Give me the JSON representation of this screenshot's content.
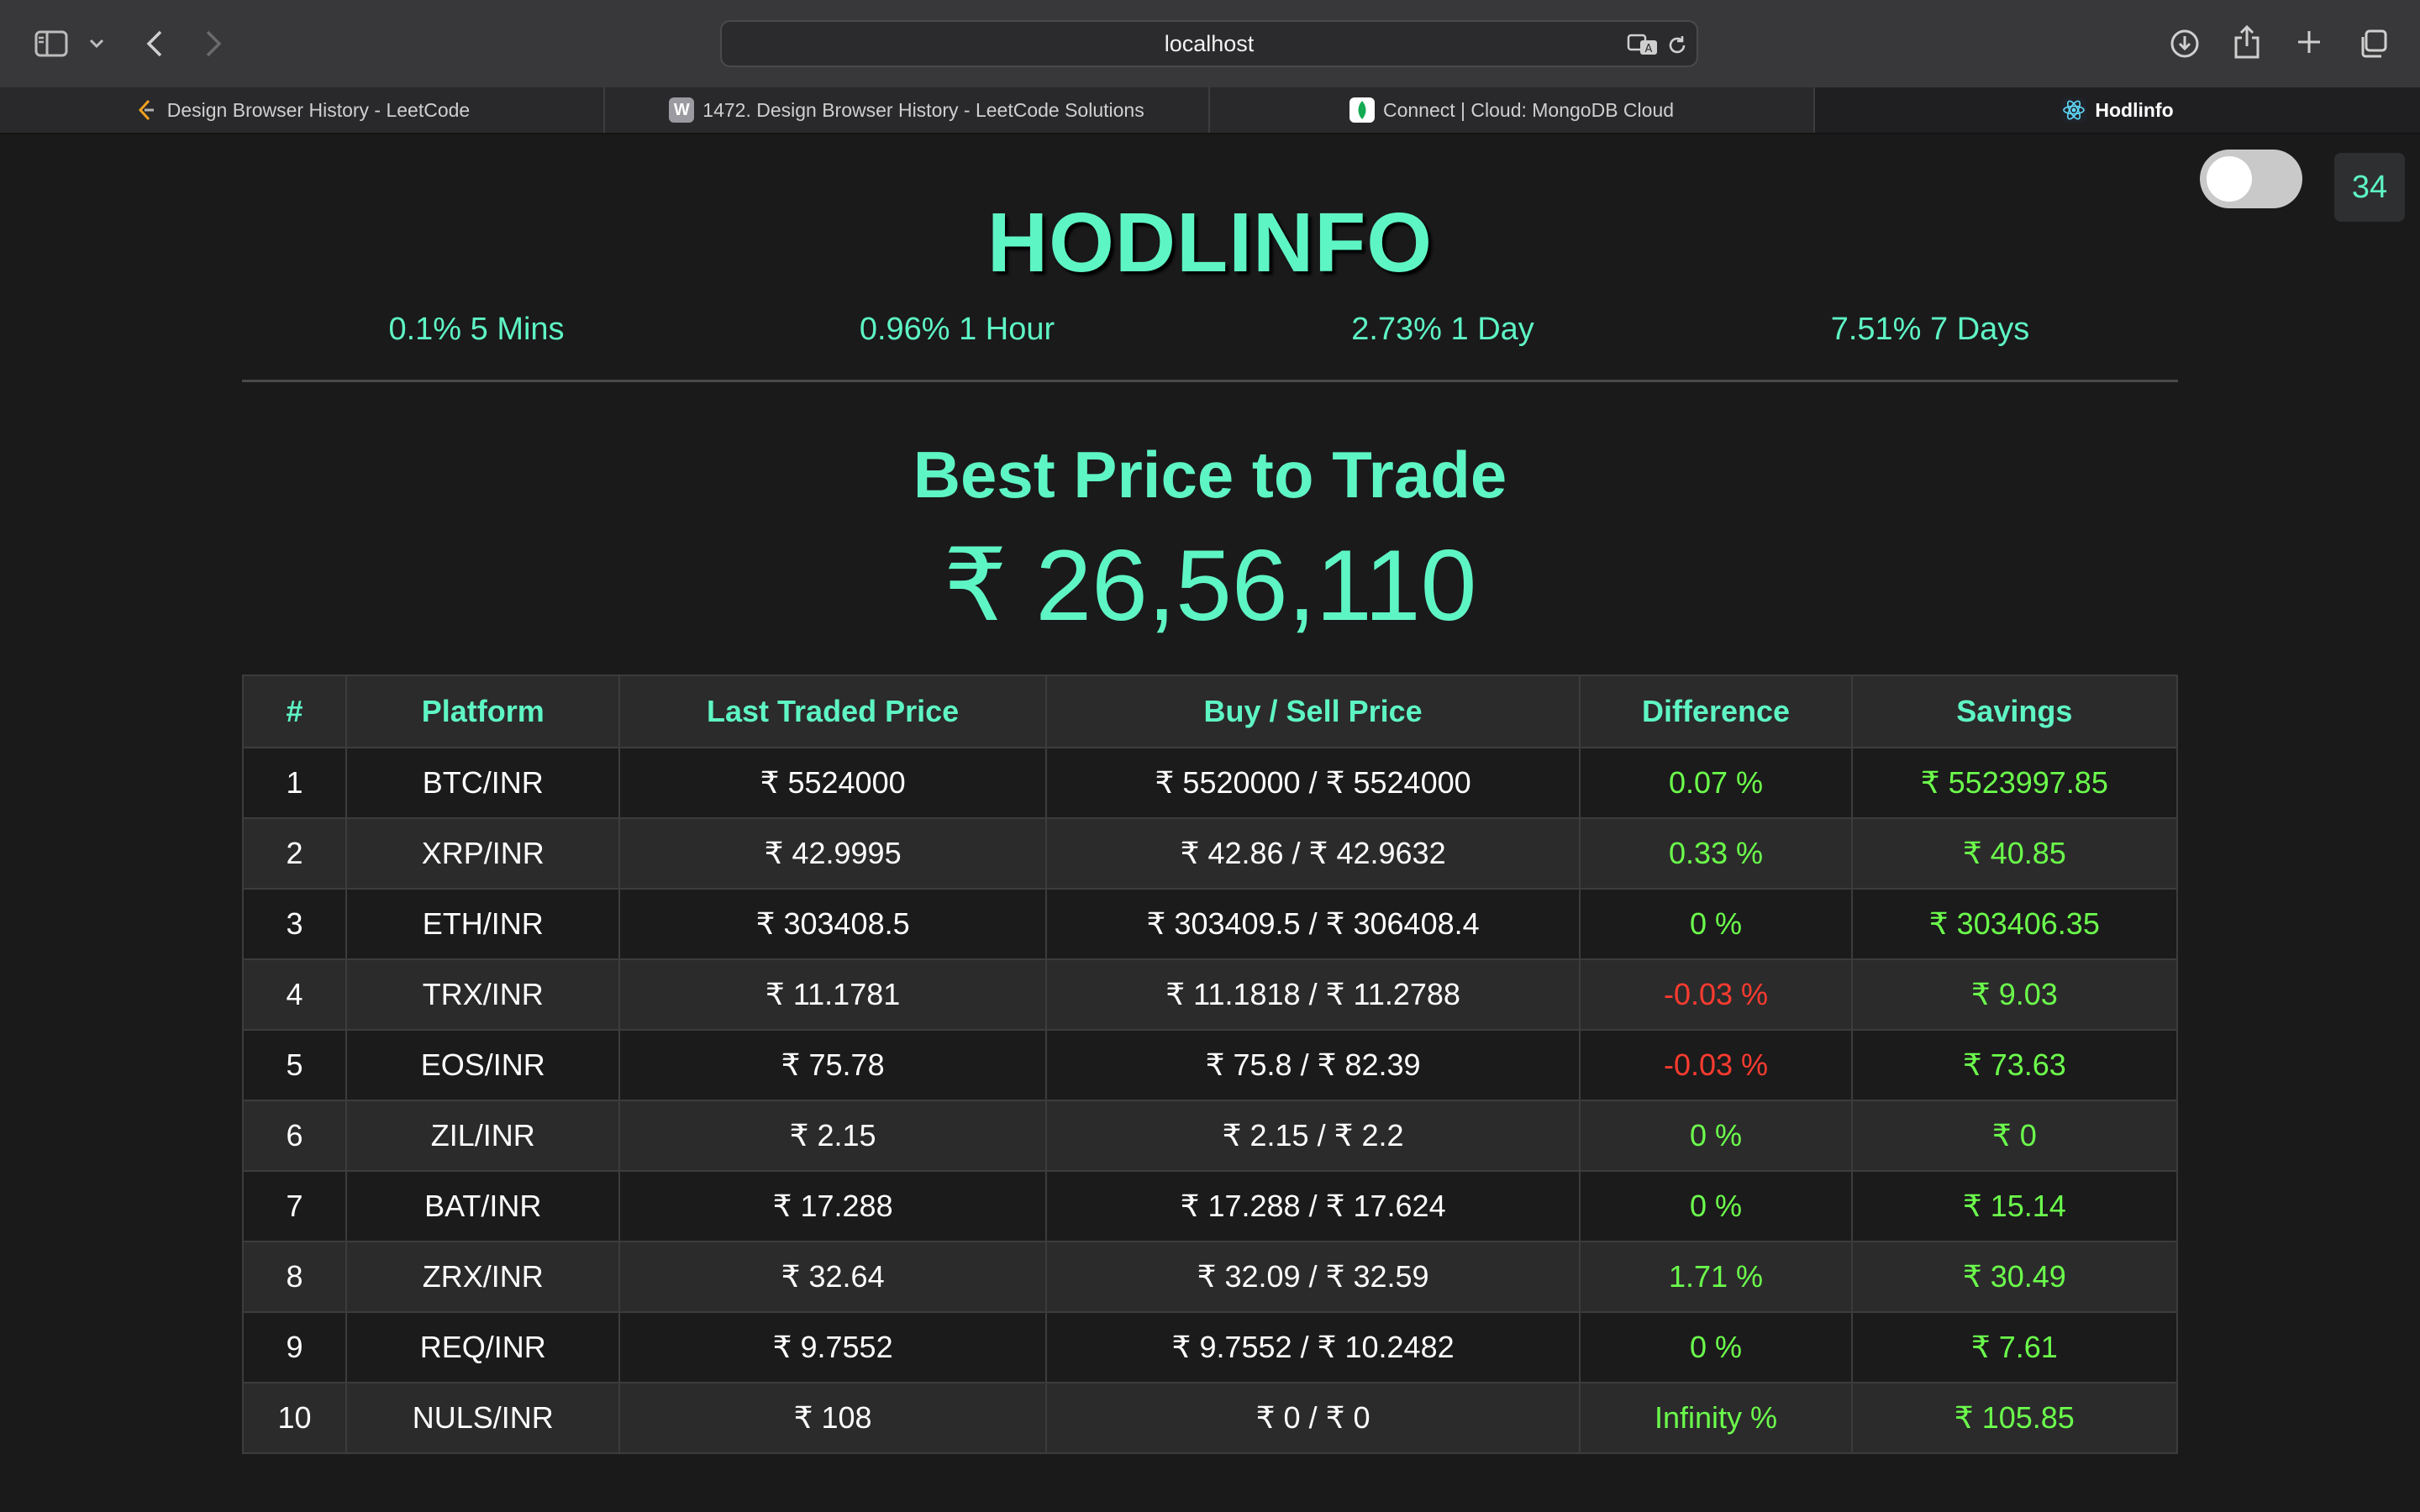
{
  "browser": {
    "address": "localhost",
    "tabs": [
      {
        "title": "Design Browser History - LeetCode",
        "favicon": "leetcode-icon"
      },
      {
        "title": "1472. Design Browser History - LeetCode Solutions",
        "favicon": "w-icon"
      },
      {
        "title": "Connect | Cloud: MongoDB Cloud",
        "favicon": "mongodb-leaf-icon"
      },
      {
        "title": "Hodlinfo",
        "favicon": "react-icon"
      }
    ],
    "active_tab": "Hodlinfo"
  },
  "header": {
    "timer": "34",
    "theme_toggle_on": false,
    "brand": "HODLINFO",
    "stats": [
      "0.1% 5 Mins",
      "0.96% 1 Hour",
      "2.73% 1 Day",
      "7.51% 7 Days"
    ]
  },
  "best": {
    "title": "Best Price to Trade",
    "price": "₹ 26,56,110"
  },
  "table": {
    "headers": [
      "#",
      "Platform",
      "Last Traded Price",
      "Buy / Sell Price",
      "Difference",
      "Savings"
    ],
    "rows": [
      {
        "n": "1",
        "platform": "BTC/INR",
        "last": "₹ 5524000",
        "buysell": "₹ 5520000 / ₹ 5524000",
        "diff": "0.07 %",
        "diff_sign": "pos",
        "savings": "₹ 5523997.85"
      },
      {
        "n": "2",
        "platform": "XRP/INR",
        "last": "₹ 42.9995",
        "buysell": "₹ 42.86 / ₹ 42.9632",
        "diff": "0.33 %",
        "diff_sign": "pos",
        "savings": "₹ 40.85"
      },
      {
        "n": "3",
        "platform": "ETH/INR",
        "last": "₹ 303408.5",
        "buysell": "₹ 303409.5 / ₹ 306408.4",
        "diff": "0 %",
        "diff_sign": "pos",
        "savings": "₹ 303406.35"
      },
      {
        "n": "4",
        "platform": "TRX/INR",
        "last": "₹ 11.1781",
        "buysell": "₹ 11.1818 / ₹ 11.2788",
        "diff": "-0.03 %",
        "diff_sign": "neg",
        "savings": "₹ 9.03"
      },
      {
        "n": "5",
        "platform": "EOS/INR",
        "last": "₹ 75.78",
        "buysell": "₹ 75.8 / ₹ 82.39",
        "diff": "-0.03 %",
        "diff_sign": "neg",
        "savings": "₹ 73.63"
      },
      {
        "n": "6",
        "platform": "ZIL/INR",
        "last": "₹ 2.15",
        "buysell": "₹ 2.15 / ₹ 2.2",
        "diff": "0 %",
        "diff_sign": "pos",
        "savings": "₹ 0"
      },
      {
        "n": "7",
        "platform": "BAT/INR",
        "last": "₹ 17.288",
        "buysell": "₹ 17.288 / ₹ 17.624",
        "diff": "0 %",
        "diff_sign": "pos",
        "savings": "₹ 15.14"
      },
      {
        "n": "8",
        "platform": "ZRX/INR",
        "last": "₹ 32.64",
        "buysell": "₹ 32.09 / ₹ 32.59",
        "diff": "1.71 %",
        "diff_sign": "pos",
        "savings": "₹ 30.49"
      },
      {
        "n": "9",
        "platform": "REQ/INR",
        "last": "₹ 9.7552",
        "buysell": "₹ 9.7552 / ₹ 10.2482",
        "diff": "0 %",
        "diff_sign": "pos",
        "savings": "₹ 7.61"
      },
      {
        "n": "10",
        "platform": "NULS/INR",
        "last": "₹ 108",
        "buysell": "₹ 0 / ₹ 0",
        "diff": "Infinity %",
        "diff_sign": "pos",
        "savings": "₹ 105.85"
      }
    ]
  },
  "colors": {
    "accent": "#5ef5c4",
    "positive": "#6cff4c",
    "negative": "#ff3b30",
    "background": "#1a1a1b"
  }
}
